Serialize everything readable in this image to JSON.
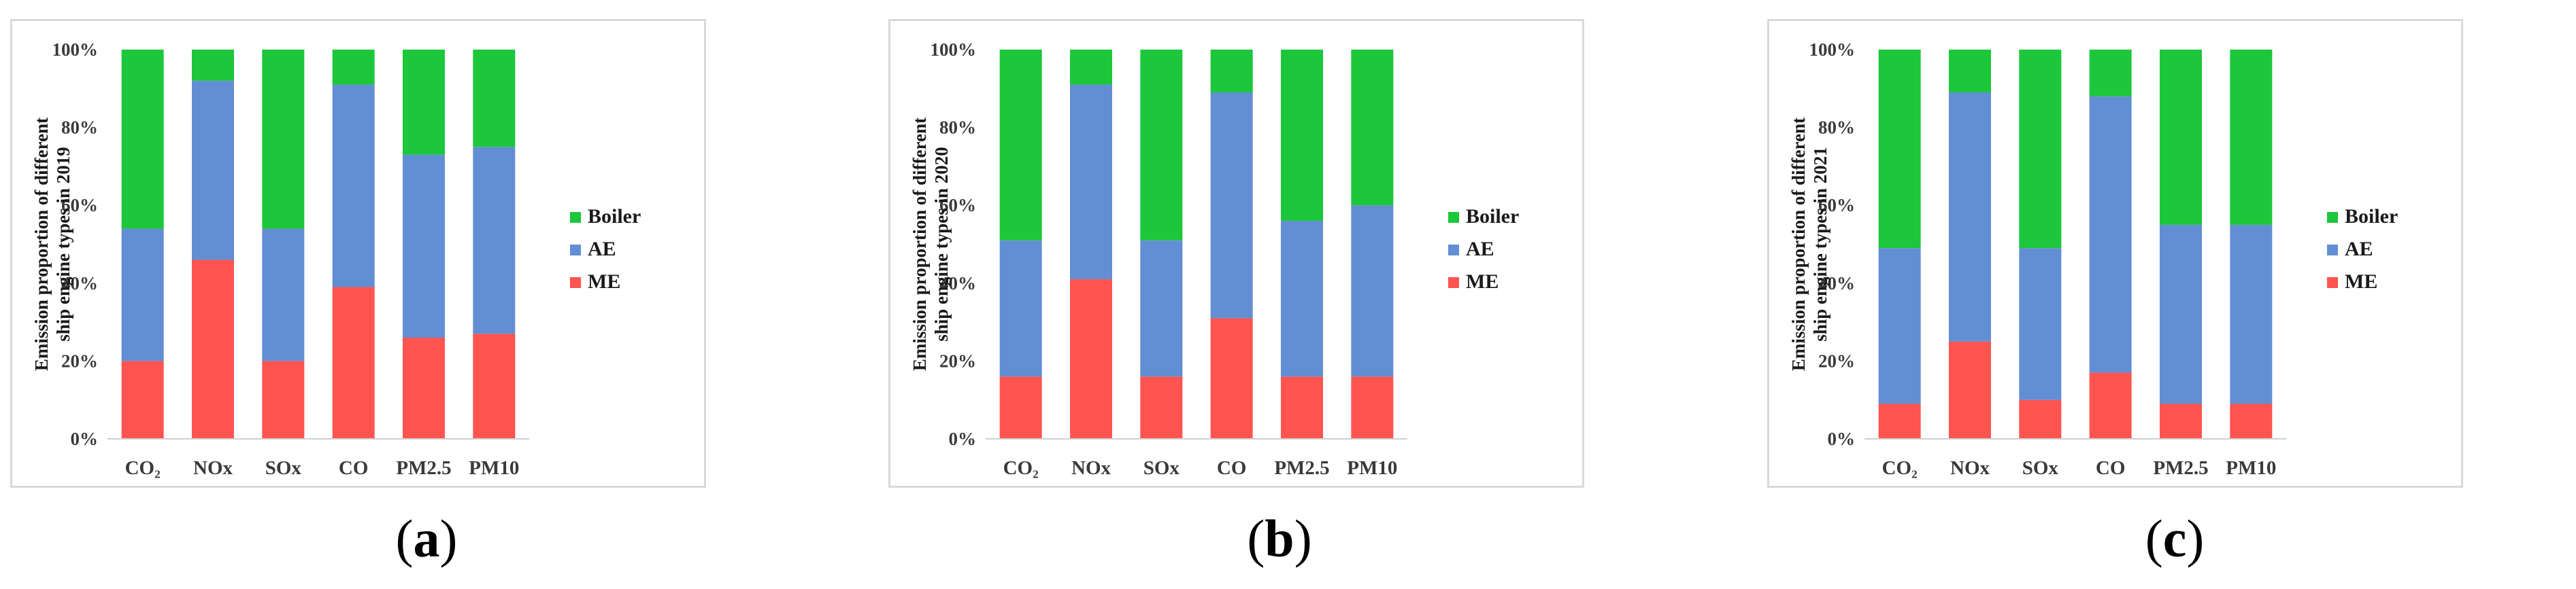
{
  "colors": {
    "ME": "#ff5450",
    "AE": "#628ed4",
    "Boiler": "#1cc73b"
  },
  "chart_data": [
    {
      "type": "bar",
      "stacked": true,
      "ylabel": "Emission proportion of different ship engine types in 2019",
      "ylim": [
        0,
        100
      ],
      "yticks": [
        "0%",
        "20%",
        "40%",
        "60%",
        "80%",
        "100%"
      ],
      "categories": [
        "CO₂",
        "NOx",
        "SOx",
        "CO",
        "PM2.5",
        "PM10"
      ],
      "series": [
        {
          "name": "ME",
          "values": [
            20,
            46,
            20,
            39,
            26,
            27
          ]
        },
        {
          "name": "AE",
          "values": [
            34,
            46,
            34,
            52,
            47,
            48
          ]
        },
        {
          "name": "Boiler",
          "values": [
            46,
            8,
            46,
            9,
            27,
            25
          ]
        }
      ],
      "legend": [
        "Boiler",
        "AE",
        "ME"
      ],
      "legend_position": "right",
      "caption_prefix": "(",
      "caption_letter": "a",
      "caption_suffix": ")"
    },
    {
      "type": "bar",
      "stacked": true,
      "ylabel": "Emission proportion of different ship engine types in 2020",
      "ylim": [
        0,
        100
      ],
      "yticks": [
        "0%",
        "20%",
        "40%",
        "60%",
        "80%",
        "100%"
      ],
      "categories": [
        "CO₂",
        "NOx",
        "SOx",
        "CO",
        "PM2.5",
        "PM10"
      ],
      "series": [
        {
          "name": "ME",
          "values": [
            16,
            41,
            16,
            31,
            16,
            16
          ]
        },
        {
          "name": "AE",
          "values": [
            35,
            50,
            35,
            58,
            40,
            44
          ]
        },
        {
          "name": "Boiler",
          "values": [
            49,
            9,
            49,
            11,
            44,
            40
          ]
        }
      ],
      "legend": [
        "Boiler",
        "AE",
        "ME"
      ],
      "legend_position": "right",
      "caption_prefix": "(",
      "caption_letter": "b",
      "caption_suffix": ")"
    },
    {
      "type": "bar",
      "stacked": true,
      "ylabel": "Emission proportion of different ship engine types in 2021",
      "ylim": [
        0,
        100
      ],
      "yticks": [
        "0%",
        "20%",
        "40%",
        "60%",
        "80%",
        "100%"
      ],
      "categories": [
        "CO₂",
        "NOx",
        "SOx",
        "CO",
        "PM2.5",
        "PM10"
      ],
      "series": [
        {
          "name": "ME",
          "values": [
            9,
            25,
            10,
            17,
            9,
            9
          ]
        },
        {
          "name": "AE",
          "values": [
            40,
            64,
            39,
            71,
            46,
            46
          ]
        },
        {
          "name": "Boiler",
          "values": [
            51,
            11,
            51,
            12,
            45,
            45
          ]
        }
      ],
      "legend": [
        "Boiler",
        "AE",
        "ME"
      ],
      "legend_position": "right",
      "caption_prefix": "(",
      "caption_letter": "c",
      "caption_suffix": ")"
    }
  ]
}
